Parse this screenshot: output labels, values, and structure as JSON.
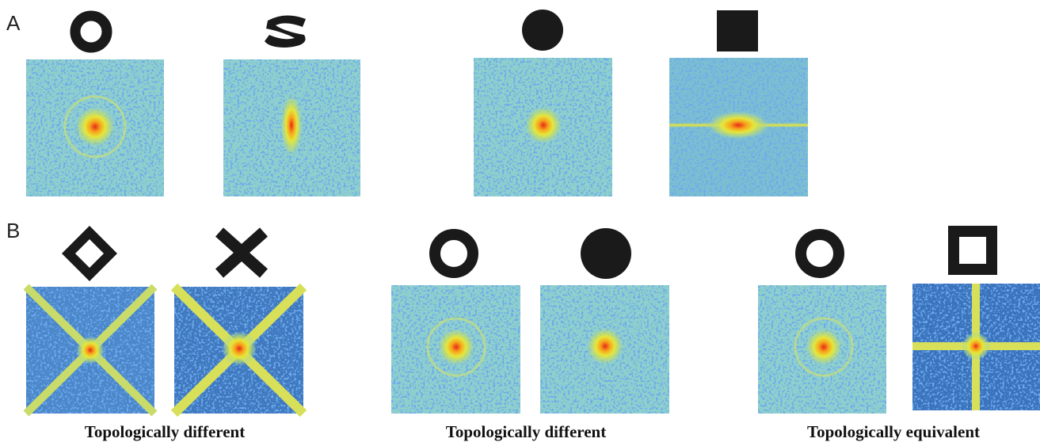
{
  "panels": [
    {
      "label": "A"
    },
    {
      "label": "B",
      "captions": [
        "Topologically different",
        "Topologically different",
        "Topologically equivalent"
      ]
    }
  ]
}
